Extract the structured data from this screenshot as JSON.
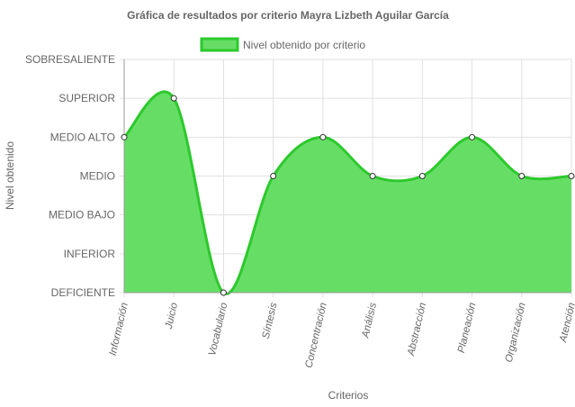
{
  "chart_data": {
    "type": "area",
    "title": "Gráfica de resultados por criterio Mayra Lizbeth Aguilar García",
    "xlabel": "Criterios",
    "ylabel": "Nivel obtenido",
    "categories": [
      "Información",
      "Juicio",
      "Vocabulario",
      "Síntesis",
      "Concentración",
      "Análisis",
      "Abstracción",
      "Planeación",
      "Organización",
      "Atención"
    ],
    "y_levels": [
      "DEFICIENTE",
      "INFERIOR",
      "MEDIO BAJO",
      "MEDIO",
      "MEDIO ALTO",
      "SUPERIOR",
      "SOBRESALIENTE"
    ],
    "series": [
      {
        "name": "Nivel obtenido por criterio",
        "values": [
          4,
          5,
          0,
          3,
          4,
          3,
          3,
          4,
          3,
          3
        ]
      }
    ],
    "ylim": [
      0,
      6
    ],
    "grid": true,
    "legend_position": "top",
    "colors": {
      "fill": "#66de66",
      "line": "#2cc92c",
      "grid": "#e0e0e0",
      "axis": "#999999"
    }
  }
}
